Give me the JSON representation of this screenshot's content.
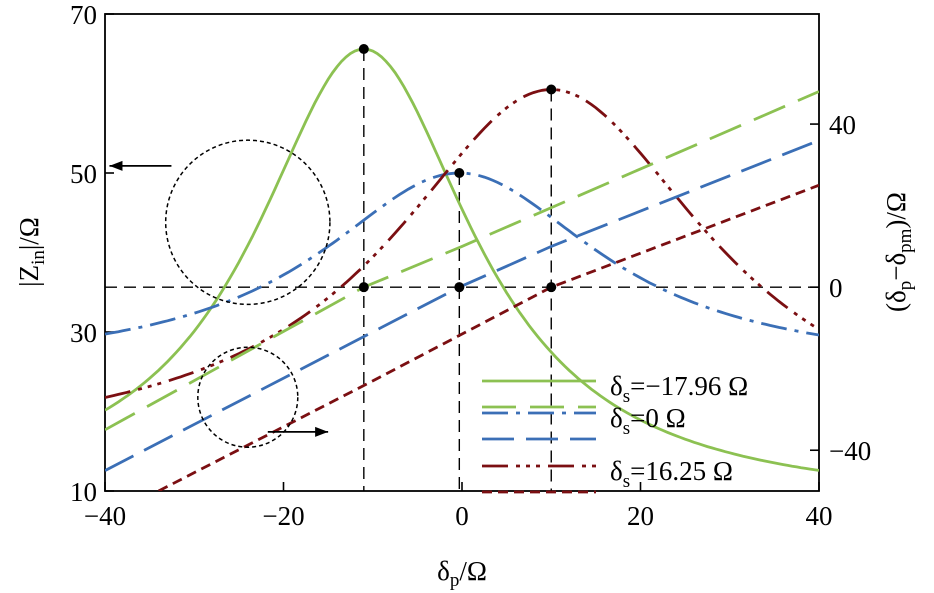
{
  "chart_data": {
    "type": "line",
    "xlabel": {
      "main": "δ",
      "sub": "p",
      "tail": "/Ω"
    },
    "ylabel_left": {
      "pre": "|Z",
      "sub": "in",
      "post": "|/Ω"
    },
    "ylabel_right": {
      "open": "(δ",
      "sub1": "p",
      "mid": "−δ",
      "sub2": "pm",
      "close": ")/Ω"
    },
    "xlim": [
      -40,
      40
    ],
    "ylim_left": [
      10,
      70
    ],
    "ylim_right": [
      -50,
      67
    ],
    "x_ticks": [
      -40,
      -20,
      0,
      20,
      40
    ],
    "x_tick_labels": [
      "−40",
      "−20",
      "0",
      "20",
      "40"
    ],
    "y_left_ticks": [
      10,
      30,
      50,
      70
    ],
    "y_left_tick_labels": [
      "10",
      "30",
      "50",
      "70"
    ],
    "y_right_ticks": [
      -40,
      0,
      40
    ],
    "y_right_tick_labels": [
      "−40",
      "0",
      "40"
    ],
    "grid": false,
    "legend_position": "bottom-right",
    "legend": [
      {
        "symbol": "δ",
        "sub": "s",
        "value": "=−17.96 Ω",
        "color": "#8cc152"
      },
      {
        "symbol": "δ",
        "sub": "s",
        "value": "=0 Ω",
        "color": "#3b6fb6"
      },
      {
        "symbol": "δ",
        "sub": "s",
        "value": "=16.25 Ω",
        "color": "#7b0f12"
      }
    ],
    "impedance_series": [
      {
        "axis": "left",
        "color": "#8cc152",
        "peak_x": -11,
        "peak_y": 65.6,
        "hwhm": 15,
        "offset": 8
      },
      {
        "axis": "left",
        "color": "#3b6fb6",
        "peak_x": -0.3,
        "peak_y": 50,
        "hwhm": 19.2,
        "offset": 25
      },
      {
        "axis": "left",
        "color": "#7b0f12",
        "peak_x": 10,
        "peak_y": 60.5,
        "hwhm": 21.8,
        "offset": 14.4
      }
    ],
    "difference_series": [
      {
        "axis": "right",
        "color": "#8cc152",
        "x": [
          -40,
          -11,
          0,
          40
        ],
        "y": [
          -35,
          0,
          10,
          48
        ]
      },
      {
        "axis": "right",
        "color": "#3b6fb6",
        "x": [
          -40,
          -0.3,
          10,
          40
        ],
        "y": [
          -45,
          0,
          10,
          36
        ]
      },
      {
        "axis": "right",
        "color": "#7b0f12",
        "x": [
          -34,
          -10,
          10,
          40
        ],
        "y": [
          -50,
          -23,
          0,
          25
        ]
      }
    ],
    "markers": [
      {
        "x": -11,
        "y_left": 65.6
      },
      {
        "x": -0.3,
        "y_left": 50
      },
      {
        "x": 10,
        "y_left": 60.5
      },
      {
        "x": -11,
        "y_right": 0
      },
      {
        "x": -0.3,
        "y_right": 0
      },
      {
        "x": 10,
        "y_right": 0
      }
    ],
    "annotations": {
      "left_indicator": {
        "circle_center": [
          -24,
          43.8
        ],
        "circle_r": 9.2,
        "arrow_to_x": -39.5
      },
      "right_indicator": {
        "circle_center": [
          -24,
          -27
        ],
        "circle_r": 5.6,
        "arrow_to_x": -15
      }
    }
  }
}
